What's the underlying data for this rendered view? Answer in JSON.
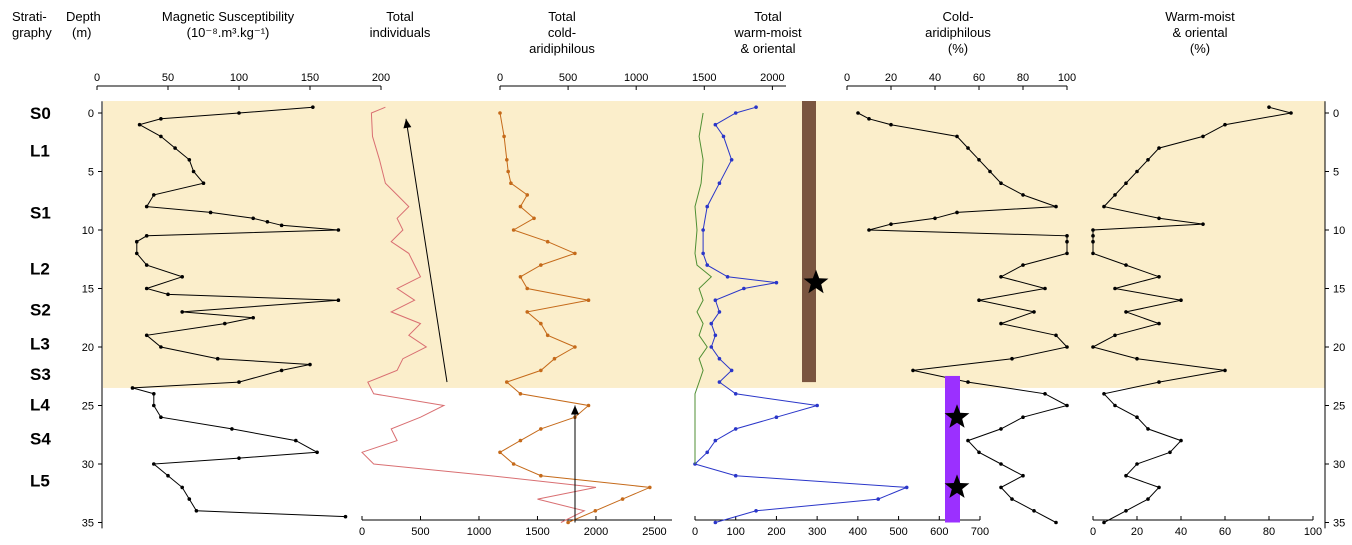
{
  "headers": {
    "stratigraphy": [
      "Strati-",
      "graphy"
    ],
    "depth": [
      "Depth",
      "(m)"
    ],
    "magsus": [
      "Magnetic Susceptibility",
      "(10⁻⁸.m³.kg⁻¹)"
    ],
    "total": [
      "Total",
      "individuals"
    ],
    "cold": [
      "Total",
      "cold-",
      "aridiphilous"
    ],
    "warm": [
      "Total",
      "warm-moist",
      "& oriental"
    ],
    "coldpct": [
      "Cold-",
      "aridiphilous",
      "(%)"
    ],
    "warmpct": [
      "Warm-moist",
      "& oriental",
      "(%)"
    ]
  },
  "stratigraphy": [
    {
      "label": "S0",
      "depth": 0
    },
    {
      "label": "L1",
      "depth": 3.2
    },
    {
      "label": "S1",
      "depth": 8.5
    },
    {
      "label": "L2",
      "depth": 13.3
    },
    {
      "label": "S2",
      "depth": 16.8
    },
    {
      "label": "L3",
      "depth": 19.7
    },
    {
      "label": "S3",
      "depth": 22.3
    },
    {
      "label": "L4",
      "depth": 24.9
    },
    {
      "label": "S4",
      "depth": 27.8
    },
    {
      "label": "L5",
      "depth": 31.4
    }
  ],
  "chart_data": {
    "type": "line",
    "depth_axis": {
      "label": "Depth (m)",
      "range": [
        -1,
        35
      ],
      "ticks": [
        0,
        5,
        10,
        15,
        20,
        25,
        30,
        35
      ]
    },
    "shaded_interval_m": [
      0,
      23.5
    ],
    "shade_color": "#fbeecb",
    "top_axes": [
      {
        "name": "magsus",
        "ticks": [
          0,
          50,
          100,
          150,
          200
        ]
      },
      {
        "name": "cold",
        "ticks": [
          0,
          500,
          1000,
          1500,
          2000
        ]
      },
      {
        "name": "coldpct",
        "ticks": [
          0,
          20,
          40,
          60,
          80,
          100
        ]
      }
    ],
    "bottom_axes": [
      {
        "name": "total",
        "ticks": [
          0,
          500,
          1000,
          1500,
          2000,
          2500
        ]
      },
      {
        "name": "warm",
        "ticks": [
          0,
          100,
          200,
          300,
          400,
          500,
          600,
          700
        ]
      },
      {
        "name": "warmpct",
        "ticks": [
          0,
          20,
          40,
          60,
          80,
          100
        ]
      }
    ],
    "series": [
      {
        "name": "Magnetic Susceptibility",
        "color": "#000000",
        "points": [
          [
            -0.5,
            152
          ],
          [
            0,
            100
          ],
          [
            0.5,
            45
          ],
          [
            1,
            30
          ],
          [
            2,
            45
          ],
          [
            3,
            55
          ],
          [
            4,
            65
          ],
          [
            5,
            68
          ],
          [
            6,
            75
          ],
          [
            7,
            40
          ],
          [
            8,
            35
          ],
          [
            8.5,
            80
          ],
          [
            9,
            110
          ],
          [
            9.3,
            120
          ],
          [
            9.6,
            130
          ],
          [
            10,
            170
          ],
          [
            10.5,
            35
          ],
          [
            11,
            28
          ],
          [
            12,
            28
          ],
          [
            13,
            35
          ],
          [
            14,
            60
          ],
          [
            15,
            35
          ],
          [
            15.5,
            50
          ],
          [
            16,
            170
          ],
          [
            17,
            60
          ],
          [
            17.5,
            110
          ],
          [
            18,
            90
          ],
          [
            19,
            35
          ],
          [
            20,
            45
          ],
          [
            21,
            85
          ],
          [
            21.5,
            150
          ],
          [
            22,
            130
          ],
          [
            23,
            100
          ],
          [
            23.5,
            25
          ],
          [
            24,
            40
          ],
          [
            25,
            40
          ],
          [
            26,
            45
          ],
          [
            27,
            95
          ],
          [
            28,
            140
          ],
          [
            29,
            155
          ],
          [
            29.5,
            100
          ],
          [
            30,
            40
          ],
          [
            31,
            50
          ],
          [
            32,
            60
          ],
          [
            33,
            65
          ],
          [
            34,
            70
          ],
          [
            34.5,
            175
          ]
        ]
      },
      {
        "name": "Total individuals",
        "color": "#d96f72",
        "points": [
          [
            -0.5,
            200
          ],
          [
            0,
            80
          ],
          [
            2,
            90
          ],
          [
            4,
            150
          ],
          [
            6,
            200
          ],
          [
            7,
            300
          ],
          [
            8,
            400
          ],
          [
            9,
            300
          ],
          [
            10,
            350
          ],
          [
            11,
            250
          ],
          [
            12,
            400
          ],
          [
            13,
            450
          ],
          [
            14,
            500
          ],
          [
            15,
            300
          ],
          [
            16,
            450
          ],
          [
            17,
            250
          ],
          [
            18,
            500
          ],
          [
            19,
            400
          ],
          [
            20,
            550
          ],
          [
            21,
            350
          ],
          [
            22,
            300
          ],
          [
            23,
            50
          ],
          [
            24,
            100
          ],
          [
            25,
            700
          ],
          [
            26,
            500
          ],
          [
            27,
            250
          ],
          [
            28,
            300
          ],
          [
            29,
            0
          ],
          [
            30,
            100
          ],
          [
            31,
            1100
          ],
          [
            32,
            2000
          ],
          [
            33,
            1500
          ],
          [
            34,
            1900
          ],
          [
            35,
            1700
          ]
        ]
      },
      {
        "name": "Total cold-aridiphilous",
        "color": "#c56a1a",
        "points": [
          [
            0,
            0
          ],
          [
            2,
            30
          ],
          [
            4,
            50
          ],
          [
            5,
            60
          ],
          [
            6,
            80
          ],
          [
            7,
            200
          ],
          [
            8,
            150
          ],
          [
            9,
            250
          ],
          [
            10,
            100
          ],
          [
            11,
            350
          ],
          [
            12,
            550
          ],
          [
            13,
            300
          ],
          [
            14,
            150
          ],
          [
            15,
            200
          ],
          [
            16,
            650
          ],
          [
            17,
            200
          ],
          [
            18,
            300
          ],
          [
            19,
            350
          ],
          [
            20,
            550
          ],
          [
            21,
            400
          ],
          [
            22,
            300
          ],
          [
            23,
            50
          ],
          [
            24,
            150
          ],
          [
            25,
            650
          ],
          [
            26,
            550
          ],
          [
            27,
            300
          ],
          [
            28,
            150
          ],
          [
            29,
            0
          ],
          [
            30,
            100
          ],
          [
            31,
            300
          ],
          [
            32,
            1100
          ],
          [
            33,
            900
          ],
          [
            34,
            700
          ],
          [
            35,
            500
          ]
        ]
      },
      {
        "name": "Total warm-moist & oriental",
        "color": "#2a36c9",
        "points": [
          [
            -0.5,
            150
          ],
          [
            0,
            100
          ],
          [
            1,
            50
          ],
          [
            2,
            70
          ],
          [
            4,
            90
          ],
          [
            6,
            60
          ],
          [
            8,
            30
          ],
          [
            10,
            20
          ],
          [
            12,
            20
          ],
          [
            13,
            30
          ],
          [
            14,
            80
          ],
          [
            14.5,
            200
          ],
          [
            15,
            120
          ],
          [
            16,
            50
          ],
          [
            17,
            60
          ],
          [
            18,
            40
          ],
          [
            19,
            50
          ],
          [
            20,
            40
          ],
          [
            21,
            60
          ],
          [
            22,
            90
          ],
          [
            23,
            60
          ],
          [
            24,
            100
          ],
          [
            25,
            300
          ],
          [
            26,
            200
          ],
          [
            27,
            100
          ],
          [
            28,
            50
          ],
          [
            29,
            30
          ],
          [
            30,
            0
          ],
          [
            31,
            100
          ],
          [
            32,
            520
          ],
          [
            33,
            450
          ],
          [
            34,
            150
          ],
          [
            35,
            50
          ]
        ]
      },
      {
        "name": "Cold-aridiphilous (%)",
        "color": "#000000",
        "points": [
          [
            0,
            5
          ],
          [
            0.5,
            10
          ],
          [
            1,
            20
          ],
          [
            2,
            50
          ],
          [
            3,
            55
          ],
          [
            4,
            60
          ],
          [
            5,
            65
          ],
          [
            6,
            70
          ],
          [
            7,
            80
          ],
          [
            8,
            95
          ],
          [
            8.5,
            50
          ],
          [
            9,
            40
          ],
          [
            9.5,
            20
          ],
          [
            10,
            10
          ],
          [
            10.5,
            100
          ],
          [
            11,
            100
          ],
          [
            12,
            100
          ],
          [
            13,
            80
          ],
          [
            14,
            70
          ],
          [
            15,
            90
          ],
          [
            16,
            60
          ],
          [
            17,
            85
          ],
          [
            18,
            70
          ],
          [
            19,
            95
          ],
          [
            20,
            100
          ],
          [
            21,
            75
          ],
          [
            22,
            30
          ],
          [
            23,
            55
          ],
          [
            24,
            90
          ],
          [
            25,
            100
          ],
          [
            26,
            80
          ],
          [
            27,
            70
          ],
          [
            28,
            55
          ],
          [
            29,
            60
          ],
          [
            30,
            70
          ],
          [
            31,
            80
          ],
          [
            32,
            70
          ],
          [
            33,
            75
          ],
          [
            34,
            85
          ],
          [
            35,
            95
          ]
        ]
      },
      {
        "name": "Warm-moist & oriental (%)",
        "color": "#000000",
        "points": [
          [
            -0.5,
            80
          ],
          [
            0,
            90
          ],
          [
            1,
            60
          ],
          [
            2,
            50
          ],
          [
            3,
            30
          ],
          [
            4,
            25
          ],
          [
            5,
            20
          ],
          [
            6,
            15
          ],
          [
            7,
            10
          ],
          [
            8,
            5
          ],
          [
            9,
            30
          ],
          [
            9.5,
            50
          ],
          [
            10,
            0
          ],
          [
            10.5,
            0
          ],
          [
            11,
            0
          ],
          [
            12,
            0
          ],
          [
            13,
            15
          ],
          [
            14,
            30
          ],
          [
            15,
            10
          ],
          [
            16,
            40
          ],
          [
            17,
            15
          ],
          [
            18,
            30
          ],
          [
            19,
            10
          ],
          [
            20,
            0
          ],
          [
            21,
            20
          ],
          [
            22,
            60
          ],
          [
            23,
            30
          ],
          [
            24,
            5
          ],
          [
            25,
            10
          ],
          [
            26,
            20
          ],
          [
            27,
            25
          ],
          [
            28,
            40
          ],
          [
            29,
            35
          ],
          [
            30,
            20
          ],
          [
            31,
            15
          ],
          [
            32,
            30
          ],
          [
            33,
            25
          ],
          [
            34,
            15
          ],
          [
            35,
            5
          ]
        ]
      },
      {
        "name": "Total (green)",
        "color": "#4f8f33",
        "points": [
          [
            0,
            20
          ],
          [
            2,
            10
          ],
          [
            4,
            20
          ],
          [
            6,
            15
          ],
          [
            8,
            0
          ],
          [
            10,
            5
          ],
          [
            12,
            0
          ],
          [
            13,
            5
          ],
          [
            14,
            40
          ],
          [
            15,
            10
          ],
          [
            16,
            20
          ],
          [
            17,
            5
          ],
          [
            18,
            20
          ],
          [
            19,
            10
          ],
          [
            20,
            30
          ],
          [
            21,
            10
          ],
          [
            22,
            20
          ],
          [
            23,
            10
          ],
          [
            24,
            0
          ],
          [
            30,
            0
          ]
        ]
      }
    ],
    "markers": [
      {
        "type": "bar",
        "color": "#7a5540",
        "depth_range": [
          0,
          23
        ]
      },
      {
        "type": "bar",
        "color": "#9b30ff",
        "depth_range": [
          23.5,
          35
        ]
      },
      {
        "type": "star",
        "depth": 14.5
      },
      {
        "type": "star",
        "depth": 26
      },
      {
        "type": "star",
        "depth": 32
      }
    ],
    "arrows": [
      {
        "from_depth": 23,
        "to_depth": 0.5
      },
      {
        "from_depth": 35,
        "to_depth": 25
      }
    ]
  }
}
